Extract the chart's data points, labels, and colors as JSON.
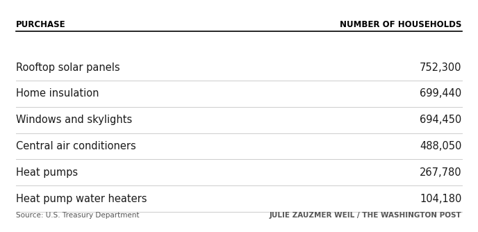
{
  "col1_header": "PURCHASE",
  "col2_header": "NUMBER OF HOUSEHOLDS",
  "rows": [
    [
      "Rooftop solar panels",
      "752,300"
    ],
    [
      "Home insulation",
      "699,440"
    ],
    [
      "Windows and skylights",
      "694,450"
    ],
    [
      "Central air conditioners",
      "488,050"
    ],
    [
      "Heat pumps",
      "267,780"
    ],
    [
      "Heat pump water heaters",
      "104,180"
    ]
  ],
  "source_text": "Source: U.S. Treasury Department",
  "credit_text": "JULIE ZAUZMER WEIL / THE WASHINGTON POST",
  "background_color": "#ffffff",
  "header_color": "#000000",
  "row_text_color": "#1a1a1a",
  "divider_color": "#cccccc",
  "header_divider_color": "#000000",
  "header_fontsize": 8.5,
  "row_fontsize": 10.5,
  "footer_fontsize": 7.5
}
